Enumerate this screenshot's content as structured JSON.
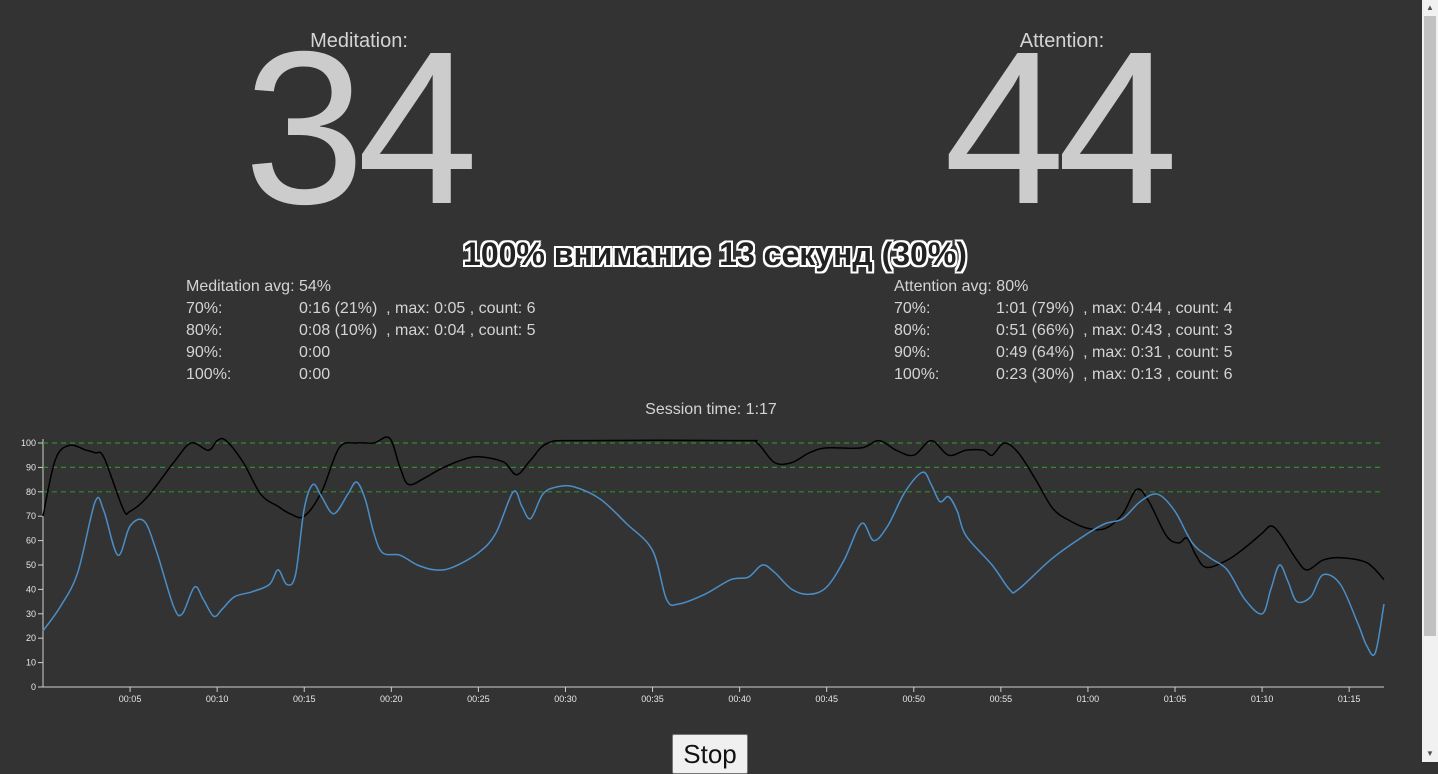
{
  "meditation": {
    "label": "Meditation:",
    "value": "34",
    "avg_label": "Meditation avg:",
    "avg_value": "54%",
    "rows": [
      {
        "label": "70%:",
        "value": "0:16 (21%)  , max: 0:05 , count: 6"
      },
      {
        "label": "80%:",
        "value": "0:08 (10%)  , max: 0:04 , count: 5"
      },
      {
        "label": "90%:",
        "value": "0:00"
      },
      {
        "label": "100%:",
        "value": "0:00"
      }
    ]
  },
  "attention": {
    "label": "Attention:",
    "value": "44",
    "avg_label": "Attention avg:",
    "avg_value": "80%",
    "rows": [
      {
        "label": "70%:",
        "value": "1:01 (79%)  , max: 0:44 , count: 4"
      },
      {
        "label": "80%:",
        "value": "0:51 (66%)  , max: 0:43 , count: 3"
      },
      {
        "label": "90%:",
        "value": "0:49 (64%)  , max: 0:31 , count: 5"
      },
      {
        "label": "100%:",
        "value": "0:23 (30%)  , max: 0:13 , count: 6"
      }
    ]
  },
  "banner": "100% внимание 13 секунд (30%)",
  "session": {
    "label": "Session time:",
    "value": "1:17"
  },
  "stop_label": "Stop",
  "chart_data": {
    "type": "line",
    "x_unit": "seconds",
    "xlim": [
      0,
      77
    ],
    "ylim": [
      0,
      100
    ],
    "yticks": [
      "0",
      "10",
      "20",
      "30",
      "40",
      "50",
      "60",
      "70",
      "80",
      "90",
      "100"
    ],
    "xtick_values": [
      5,
      10,
      15,
      20,
      25,
      30,
      35,
      40,
      45,
      50,
      55,
      60,
      65,
      70,
      75
    ],
    "xticks": [
      "00:05",
      "00:10",
      "00:15",
      "00:20",
      "00:25",
      "00:30",
      "00:35",
      "00:40",
      "00:45",
      "00:50",
      "00:55",
      "01:00",
      "01:05",
      "01:10",
      "01:15"
    ],
    "threshold_lines": [
      80,
      90,
      100
    ],
    "threshold_color": "#2e8b2e",
    "series": [
      {
        "color": "#000000",
        "points": [
          [
            0,
            70
          ],
          [
            0.7,
            93
          ],
          [
            1.5,
            99
          ],
          [
            2.5,
            97
          ],
          [
            3,
            96
          ],
          [
            3.5,
            94
          ],
          [
            4.6,
            73
          ],
          [
            5,
            72
          ],
          [
            6,
            78
          ],
          [
            7.5,
            92
          ],
          [
            8.5,
            100
          ],
          [
            9.5,
            97
          ],
          [
            10,
            101
          ],
          [
            10.5,
            101
          ],
          [
            11.5,
            92
          ],
          [
            12.5,
            79
          ],
          [
            13.5,
            74
          ],
          [
            14.2,
            71
          ],
          [
            15,
            70
          ],
          [
            16,
            80
          ],
          [
            17,
            98
          ],
          [
            18,
            100
          ],
          [
            19,
            100
          ],
          [
            19.9,
            102
          ],
          [
            20.5,
            90
          ],
          [
            21,
            83
          ],
          [
            22,
            86
          ],
          [
            23,
            90
          ],
          [
            24.5,
            94
          ],
          [
            25.5,
            94
          ],
          [
            26.5,
            92
          ],
          [
            27.2,
            87
          ],
          [
            28,
            93
          ],
          [
            29,
            100
          ],
          [
            31,
            101
          ],
          [
            40,
            101
          ],
          [
            41,
            100
          ],
          [
            42,
            92
          ],
          [
            43,
            92
          ],
          [
            44,
            96
          ],
          [
            45,
            98
          ],
          [
            47,
            98
          ],
          [
            48,
            101
          ],
          [
            49,
            97
          ],
          [
            50,
            95
          ],
          [
            51,
            101
          ],
          [
            52,
            95
          ],
          [
            53,
            97
          ],
          [
            54,
            97
          ],
          [
            54.5,
            95
          ],
          [
            55.2,
            100
          ],
          [
            56,
            96
          ],
          [
            57,
            85
          ],
          [
            58,
            73
          ],
          [
            59,
            68
          ],
          [
            60,
            65
          ],
          [
            61,
            65
          ],
          [
            62,
            71
          ],
          [
            62.8,
            81
          ],
          [
            63.5,
            76
          ],
          [
            64.5,
            62
          ],
          [
            65.2,
            59
          ],
          [
            65.7,
            61
          ],
          [
            66.2,
            54
          ],
          [
            66.8,
            49
          ],
          [
            68,
            52
          ],
          [
            69,
            57
          ],
          [
            70,
            63
          ],
          [
            70.5,
            66
          ],
          [
            71,
            63
          ],
          [
            72,
            52
          ],
          [
            72.6,
            48
          ],
          [
            73.5,
            52
          ],
          [
            74.5,
            53
          ],
          [
            76,
            51
          ],
          [
            77,
            44
          ]
        ]
      },
      {
        "color": "#4a8ec8",
        "points": [
          [
            0,
            23
          ],
          [
            1,
            33
          ],
          [
            2,
            47
          ],
          [
            3,
            76
          ],
          [
            3.5,
            72
          ],
          [
            4.3,
            54
          ],
          [
            5,
            66
          ],
          [
            5.8,
            68
          ],
          [
            6.5,
            56
          ],
          [
            7.5,
            33
          ],
          [
            8,
            30
          ],
          [
            8.7,
            41
          ],
          [
            9.2,
            36
          ],
          [
            9.8,
            29
          ],
          [
            10.3,
            32
          ],
          [
            11,
            37
          ],
          [
            12,
            39
          ],
          [
            13,
            42
          ],
          [
            13.5,
            48
          ],
          [
            14,
            42
          ],
          [
            14.5,
            46
          ],
          [
            15,
            73
          ],
          [
            15.5,
            83
          ],
          [
            16,
            78
          ],
          [
            16.7,
            71
          ],
          [
            17.5,
            79
          ],
          [
            18,
            84
          ],
          [
            18.5,
            77
          ],
          [
            19,
            63
          ],
          [
            19.5,
            55
          ],
          [
            20.5,
            54
          ],
          [
            21.5,
            50
          ],
          [
            22.5,
            48
          ],
          [
            23.5,
            49
          ],
          [
            25,
            55
          ],
          [
            26,
            63
          ],
          [
            27,
            80
          ],
          [
            27.5,
            74
          ],
          [
            28,
            69
          ],
          [
            28.7,
            79
          ],
          [
            29.5,
            82
          ],
          [
            30.5,
            82
          ],
          [
            32,
            77
          ],
          [
            33.5,
            67
          ],
          [
            35,
            56
          ],
          [
            35.8,
            36
          ],
          [
            36.5,
            34
          ],
          [
            38,
            38
          ],
          [
            39.5,
            44
          ],
          [
            40.5,
            45
          ],
          [
            41.3,
            50
          ],
          [
            42,
            47
          ],
          [
            43,
            40
          ],
          [
            44,
            38
          ],
          [
            45,
            41
          ],
          [
            46,
            52
          ],
          [
            47,
            67
          ],
          [
            47.7,
            60
          ],
          [
            48.5,
            66
          ],
          [
            49.5,
            80
          ],
          [
            50.5,
            88
          ],
          [
            51,
            83
          ],
          [
            51.5,
            76
          ],
          [
            52,
            78
          ],
          [
            52.5,
            72
          ],
          [
            53,
            62
          ],
          [
            54.5,
            50
          ],
          [
            55.5,
            40
          ],
          [
            56,
            40
          ],
          [
            58,
            53
          ],
          [
            60,
            63
          ],
          [
            61,
            67
          ],
          [
            62,
            69
          ],
          [
            63,
            76
          ],
          [
            64,
            79
          ],
          [
            65,
            72
          ],
          [
            66,
            59
          ],
          [
            67,
            53
          ],
          [
            68,
            48
          ],
          [
            69,
            36
          ],
          [
            70,
            30
          ],
          [
            70.5,
            40
          ],
          [
            71,
            50
          ],
          [
            71.5,
            43
          ],
          [
            72,
            35
          ],
          [
            72.8,
            37
          ],
          [
            73.5,
            46
          ],
          [
            74.5,
            42
          ],
          [
            75.5,
            26
          ],
          [
            76,
            17
          ],
          [
            76.5,
            14
          ],
          [
            77,
            34
          ]
        ]
      }
    ]
  }
}
